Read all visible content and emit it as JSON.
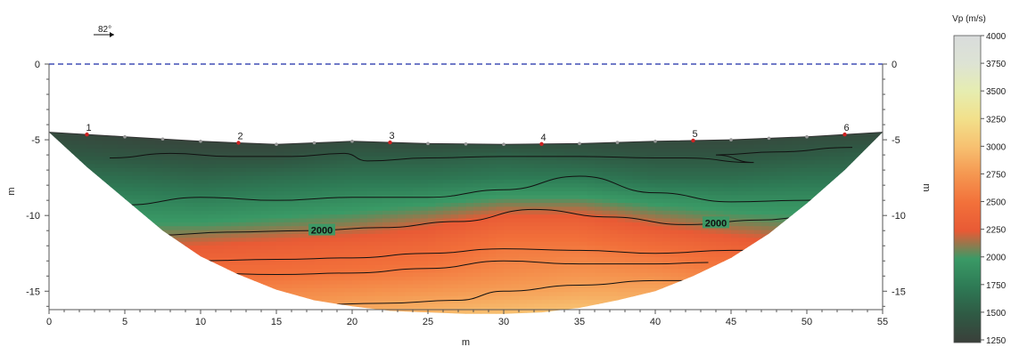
{
  "chart_data": {
    "type": "heatmap",
    "title": "",
    "xlabel": "m",
    "ylabel_left": "m",
    "ylabel_right": "m",
    "xlim": [
      0,
      55
    ],
    "ylim": [
      -16.5,
      0
    ],
    "x_ticks": [
      "0",
      "5",
      "10",
      "15",
      "20",
      "25",
      "30",
      "35",
      "40",
      "45",
      "50",
      "55"
    ],
    "y_ticks_left": [
      "0",
      "-5",
      "-10",
      "-15"
    ],
    "y_ticks_right": [
      "0",
      "-5",
      "-10",
      "-15"
    ],
    "direction_label": "82°",
    "reference_line": {
      "y": 0,
      "style": "dashed",
      "color": "#1a2aa8"
    },
    "surface_profile": {
      "x": [
        0,
        5,
        10,
        15,
        20,
        25,
        30,
        35,
        40,
        45,
        50,
        55
      ],
      "y": [
        -4.5,
        -4.8,
        -5.1,
        -5.3,
        -5.1,
        -5.25,
        -5.3,
        -5.25,
        -5.1,
        -5.0,
        -4.8,
        -4.5
      ]
    },
    "bottom_boundary": {
      "x": [
        0,
        2.5,
        5,
        7.5,
        10,
        12.5,
        15,
        17.5,
        20,
        22.5,
        25,
        27.5,
        30,
        32.5,
        35,
        37.5,
        40,
        42.5,
        45,
        47.5,
        50,
        52.5,
        55
      ],
      "y": [
        -4.5,
        -6.8,
        -8.9,
        -11.0,
        -12.7,
        -13.9,
        -14.9,
        -15.6,
        -16.0,
        -16.3,
        -16.4,
        -16.5,
        -16.5,
        -16.4,
        -16.1,
        -15.6,
        -15.0,
        -14.0,
        -12.8,
        -11.2,
        -9.2,
        -7.0,
        -4.5
      ]
    },
    "geophones": {
      "x": [
        2.5,
        5,
        7.5,
        10,
        12.5,
        15,
        17.5,
        20,
        22.5,
        25,
        27.5,
        30,
        32.5,
        35,
        37.5,
        40,
        42.5,
        45,
        47.5,
        50,
        52.5
      ],
      "labels": [
        {
          "x": 2.5,
          "text": "1"
        },
        {
          "x": 12.5,
          "text": "2"
        },
        {
          "x": 22.5,
          "text": "3"
        },
        {
          "x": 32.5,
          "text": "4"
        },
        {
          "x": 42.5,
          "text": "5"
        },
        {
          "x": 52.5,
          "text": "6"
        }
      ]
    },
    "velocity_field": {
      "description_units": "m/s",
      "columns_x": [
        0,
        5,
        10,
        15,
        20,
        25,
        30,
        35,
        40,
        45,
        50,
        55
      ],
      "rows_depth": [
        -4.5,
        -6,
        -7.5,
        -9,
        -10.5,
        -12,
        -13.5,
        -15,
        -16.5
      ],
      "vp": [
        [
          1350,
          1300,
          1250,
          1250,
          1300,
          1250,
          1250,
          1300,
          1300,
          1300,
          1350,
          1350
        ],
        [
          1500,
          1450,
          1400,
          1400,
          1500,
          1500,
          1550,
          1500,
          1450,
          1450,
          1500,
          1550
        ],
        [
          1700,
          1650,
          1600,
          1650,
          1700,
          1700,
          1750,
          1750,
          1650,
          1650,
          1700,
          1700
        ],
        [
          1850,
          1850,
          1800,
          1850,
          1900,
          1950,
          2050,
          2050,
          1950,
          1900,
          1900,
          1900
        ],
        [
          2000,
          2000,
          2000,
          2050,
          2100,
          2200,
          2350,
          2350,
          2200,
          2100,
          2050,
          2050
        ],
        [
          2150,
          2200,
          2250,
          2300,
          2350,
          2400,
          2550,
          2550,
          2450,
          2350,
          2250,
          2200
        ],
        [
          2300,
          2400,
          2450,
          2450,
          2500,
          2550,
          2650,
          2700,
          2650,
          2550,
          2400,
          2300
        ],
        [
          2450,
          2550,
          2600,
          2650,
          2700,
          2750,
          2800,
          2850,
          2850,
          2750,
          2600,
          2450
        ],
        [
          2600,
          2700,
          2750,
          2800,
          2900,
          2950,
          3000,
          3050,
          3000,
          2900,
          2750,
          2600
        ]
      ]
    },
    "contours": [
      {
        "level": 1500,
        "x": [
          4,
          8,
          12,
          16,
          19.5,
          21,
          25,
          30,
          35,
          40,
          42,
          46.5,
          44,
          48,
          53
        ],
        "y": [
          -6.2,
          -5.9,
          -6.1,
          -6.1,
          -5.9,
          -6.4,
          -6.2,
          -6.1,
          -6.1,
          -6.2,
          -6.2,
          -6.5,
          -6.0,
          -5.8,
          -5.5
        ]
      },
      {
        "level": 1750,
        "x": [
          5,
          10,
          15,
          20,
          25,
          30,
          35,
          40,
          45,
          50,
          53
        ],
        "y": [
          -9.3,
          -8.8,
          -9.0,
          -8.8,
          -8.8,
          -8.3,
          -7.4,
          -8.5,
          -9.1,
          -9.0,
          -8.1
        ]
      },
      {
        "level": 2000,
        "x": [
          7,
          12,
          17,
          22,
          27,
          32,
          37,
          42,
          47,
          50
        ],
        "y": [
          -11.3,
          -11.1,
          -11.0,
          -10.8,
          -10.4,
          -9.6,
          -10.1,
          -10.6,
          -10.3,
          -10.1
        ],
        "label": "2000",
        "label_positions": [
          18,
          44
        ]
      },
      {
        "level": 2250,
        "x": [
          9.5,
          15,
          20,
          25,
          30,
          35,
          40,
          45,
          47.5
        ],
        "y": [
          -13.0,
          -12.9,
          -12.8,
          -12.5,
          -12.2,
          -12.3,
          -12.5,
          -12.3,
          -12.3
        ]
      },
      {
        "level": 2500,
        "x": [
          10,
          15,
          20,
          25,
          30,
          35,
          40,
          43.5
        ],
        "y": [
          -13.8,
          -13.9,
          -13.8,
          -13.5,
          -13.0,
          -13.2,
          -13.2,
          -13.1
        ]
      },
      {
        "level": 2750,
        "x": [
          17,
          22,
          27,
          30,
          35,
          40,
          43
        ],
        "y": [
          -15.9,
          -15.8,
          -15.6,
          -15.0,
          -14.6,
          -14.3,
          -14.3
        ]
      }
    ],
    "colorbar": {
      "title": "Vp (m/s)",
      "min": 1250,
      "max": 4000,
      "ticks": [
        "4000",
        "3750",
        "3500",
        "3250",
        "3000",
        "2750",
        "2500",
        "2250",
        "2000",
        "1750",
        "1500",
        "1250"
      ],
      "stops": [
        {
          "v": 1250,
          "color": "#3a3f3a"
        },
        {
          "v": 1500,
          "color": "#2f5a44"
        },
        {
          "v": 1750,
          "color": "#2e7a55"
        },
        {
          "v": 2000,
          "color": "#3a9a66"
        },
        {
          "v": 2250,
          "color": "#e85a35"
        },
        {
          "v": 2500,
          "color": "#f2703a"
        },
        {
          "v": 2750,
          "color": "#f59650"
        },
        {
          "v": 3000,
          "color": "#f7c070"
        },
        {
          "v": 3250,
          "color": "#f2e08a"
        },
        {
          "v": 3500,
          "color": "#e6edb0"
        },
        {
          "v": 3750,
          "color": "#dde3d4"
        },
        {
          "v": 4000,
          "color": "#d9dcdc"
        }
      ]
    }
  }
}
